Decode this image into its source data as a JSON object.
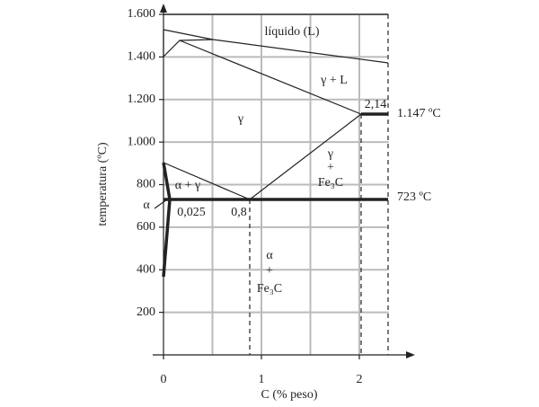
{
  "chart_data": {
    "type": "phase-diagram",
    "xlabel": "C (% peso)",
    "ylabel": "temperatura (ºC)",
    "xlim": [
      0,
      2.3
    ],
    "ylim": [
      0,
      1600
    ],
    "xticks": [
      0,
      1,
      2
    ],
    "yticks": [
      200,
      400,
      600,
      800,
      {
        "value": 1000,
        "label": "1.000"
      },
      {
        "value": 1200,
        "label": "1.200"
      },
      {
        "value": 1400,
        "label": "1.400"
      },
      {
        "value": 1600,
        "label": "1.600"
      }
    ],
    "grid": true,
    "annotations": {
      "liquid": "líquido (L)",
      "gamma_liquid": "γ + L",
      "gamma": "γ",
      "c214": "2,14",
      "t1147": "1.147 ºC",
      "gamma_fe3c": [
        "γ",
        "+",
        "Fe₃C"
      ],
      "t723": "723 ºC",
      "alpha_gamma": "α + γ",
      "alpha": "α",
      "c0025": "0,025",
      "c08": "0,8",
      "alpha_fe3c": [
        "α",
        "+",
        "Fe₃C"
      ]
    }
  }
}
